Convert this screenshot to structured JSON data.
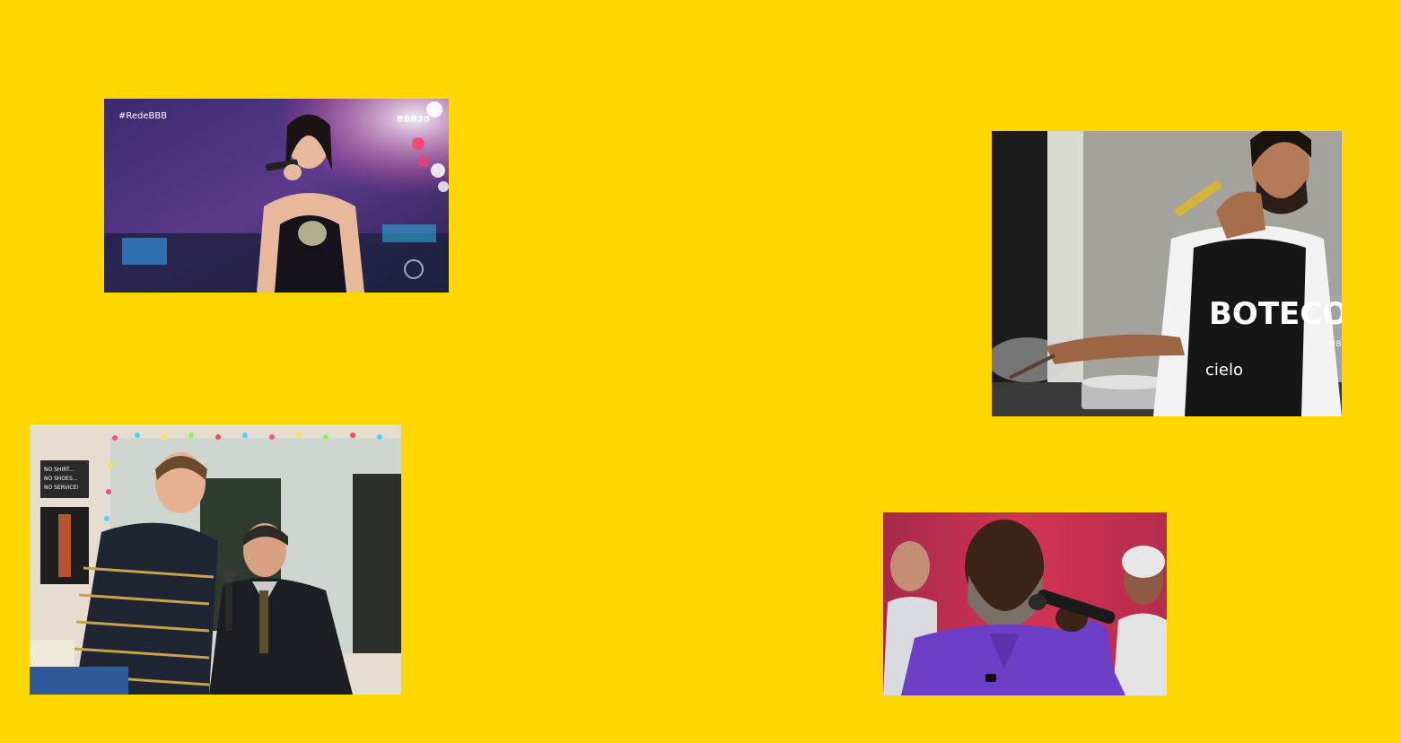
{
  "page": {
    "background_color": "#FFD700"
  },
  "photos": [
    {
      "description_name": "singer-on-stage-photo",
      "overlay_left": "#RedeBBB",
      "overlay_right": "BBB20"
    },
    {
      "description_name": "cooking-singer-photo",
      "apron_text": "BOTECO",
      "apron_brand": "cielo",
      "edge_text": "#BI"
    },
    {
      "description_name": "office-karaoke-photo",
      "sign_text_1": "NO SHIRT...",
      "sign_text_2": "NO SHOES...",
      "sign_text_3": "NO SERVICE!"
    },
    {
      "description_name": "purple-shirt-singer-photo"
    }
  ]
}
